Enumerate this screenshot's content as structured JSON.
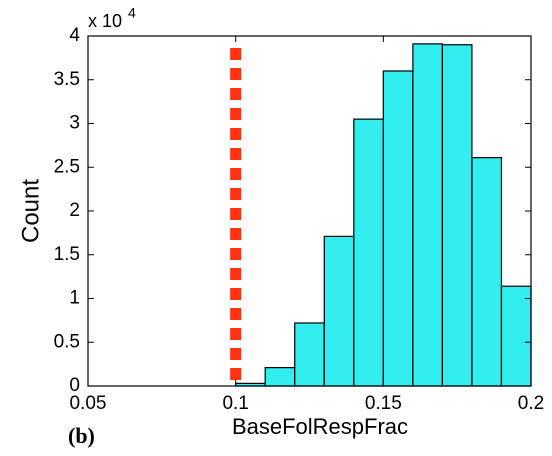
{
  "chart_data": {
    "type": "histogram",
    "panel_label": "(b)",
    "xlabel": "BaseFolRespFrac",
    "ylabel": "Count",
    "y_scale_label": "x 10",
    "y_scale_exponent": "4",
    "bins": [
      0.1,
      0.11,
      0.12,
      0.13,
      0.14,
      0.15,
      0.16,
      0.17,
      0.18,
      0.19,
      0.2
    ],
    "values": [
      0.03,
      0.21,
      0.72,
      1.71,
      3.05,
      3.6,
      3.91,
      3.9,
      2.61,
      1.14
    ],
    "color": "#33eeee",
    "xlim": [
      0.05,
      0.2
    ],
    "xticks": [
      0.05,
      0.1,
      0.15,
      0.2
    ],
    "ylim": [
      0,
      4
    ],
    "yticks": [
      0,
      0.5,
      1,
      1.5,
      2,
      2.5,
      3,
      3.5,
      4
    ],
    "vline": {
      "x": 0.1,
      "color": "#ff3311"
    }
  }
}
